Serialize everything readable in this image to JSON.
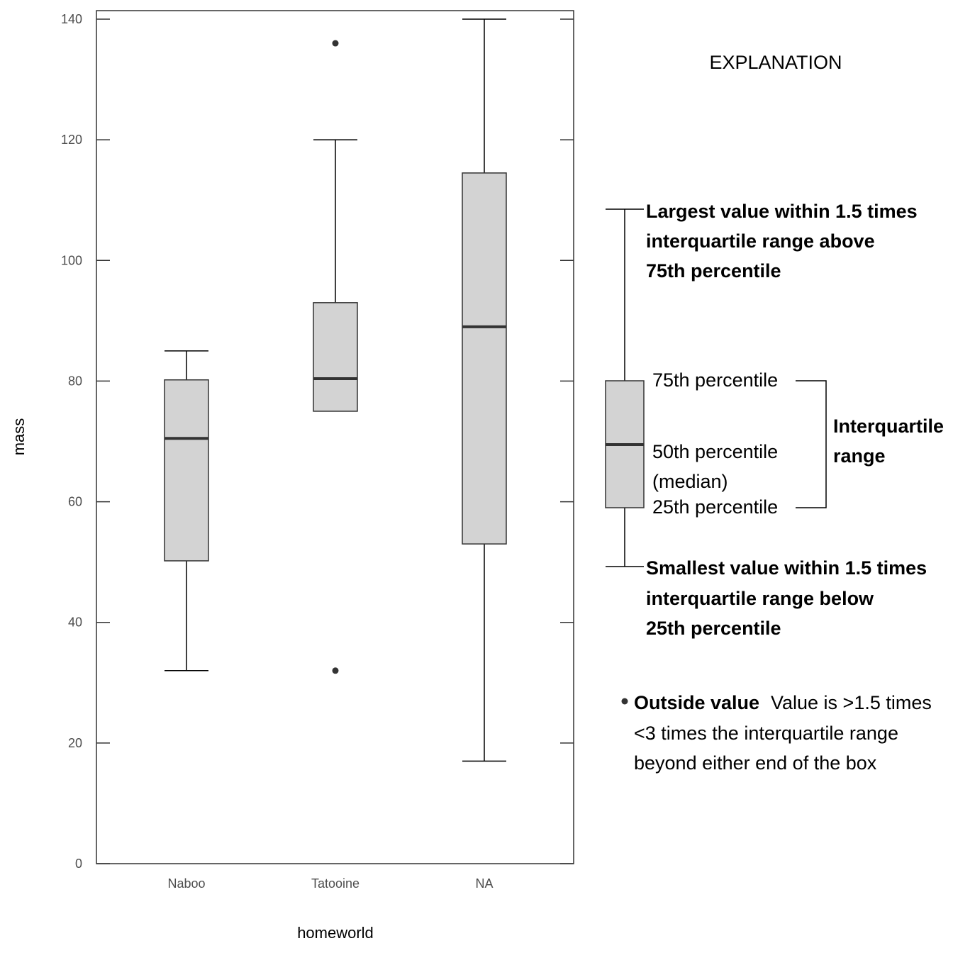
{
  "chart_data": {
    "type": "boxplot",
    "xlabel": "homeworld",
    "ylabel": "mass",
    "ylim": [
      0,
      140
    ],
    "yticks": [
      "0",
      "20",
      "40",
      "60",
      "80",
      "100",
      "120",
      "140"
    ],
    "categories": [
      "Naboo",
      "Tatooine",
      "NA"
    ],
    "boxes": [
      {
        "category": "Naboo",
        "lower_whisker": 32,
        "q1": 50.2,
        "median": 70.5,
        "q3": 80.2,
        "upper_whisker": 85,
        "outliers": []
      },
      {
        "category": "Tatooine",
        "lower_whisker": 75,
        "q1": 75,
        "median": 80.4,
        "q3": 93,
        "upper_whisker": 120,
        "outliers": [
          32,
          136
        ]
      },
      {
        "category": "NA",
        "lower_whisker": 17,
        "q1": 53,
        "median": 89,
        "q3": 114.5,
        "upper_whisker": 140,
        "outliers": []
      }
    ],
    "colors": {
      "box_fill": "#d3d3d3",
      "box_stroke": "#333333",
      "median": "#333333",
      "axis": "#333333"
    }
  },
  "explanation": {
    "title": "EXPLANATION",
    "upper_whisker_lines": [
      "Largest value within 1.5 times",
      "interquartile range above",
      "75th percentile"
    ],
    "p75": "75th percentile",
    "p50_lines": [
      "50th percentile",
      "(median)"
    ],
    "p25": "25th percentile",
    "iqr_lines": [
      "Interquartile",
      "range"
    ],
    "lower_whisker_lines": [
      "Smallest value within 1.5 times",
      "interquartile range below",
      "25th percentile"
    ],
    "outside_label": "Outside value",
    "outside_desc_lines": [
      "Value is >1.5 times",
      "<3 times the interquartile range",
      "beyond either end of the box"
    ]
  }
}
